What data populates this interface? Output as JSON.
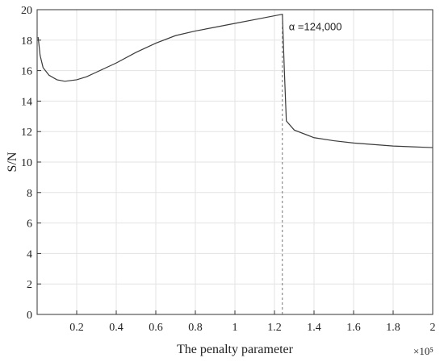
{
  "chart_data": {
    "type": "line",
    "x_label": "The penalty parameter",
    "y_label": "S/N",
    "x_multiplier": "×10⁵",
    "x": [
      0.005,
      0.015,
      0.03,
      0.06,
      0.1,
      0.14,
      0.2,
      0.25,
      0.3,
      0.4,
      0.5,
      0.6,
      0.7,
      0.8,
      0.9,
      1.0,
      1.1,
      1.2,
      1.24,
      1.25,
      1.26,
      1.3,
      1.4,
      1.5,
      1.6,
      1.7,
      1.8,
      1.9,
      2.0
    ],
    "series": [
      {
        "name": "S/N",
        "color": "#3a3a3a",
        "values": [
          18.2,
          17.0,
          16.2,
          15.7,
          15.4,
          15.3,
          15.4,
          15.6,
          15.9,
          16.5,
          17.2,
          17.8,
          18.3,
          18.6,
          18.85,
          19.1,
          19.35,
          19.6,
          19.7,
          16.0,
          12.7,
          12.1,
          11.6,
          11.4,
          11.25,
          11.15,
          11.05,
          11.0,
          10.95
        ]
      }
    ],
    "reference_line": {
      "x": 1.24,
      "label": "α =124,000"
    },
    "xlim": [
      0,
      2
    ],
    "ylim": [
      0,
      20
    ],
    "xticks": [
      0.2,
      0.4,
      0.6,
      0.8,
      1,
      1.2,
      1.4,
      1.6,
      1.8,
      2
    ],
    "yticks": [
      0,
      2,
      4,
      6,
      8,
      10,
      12,
      14,
      16,
      18,
      20
    ],
    "grid": true
  }
}
